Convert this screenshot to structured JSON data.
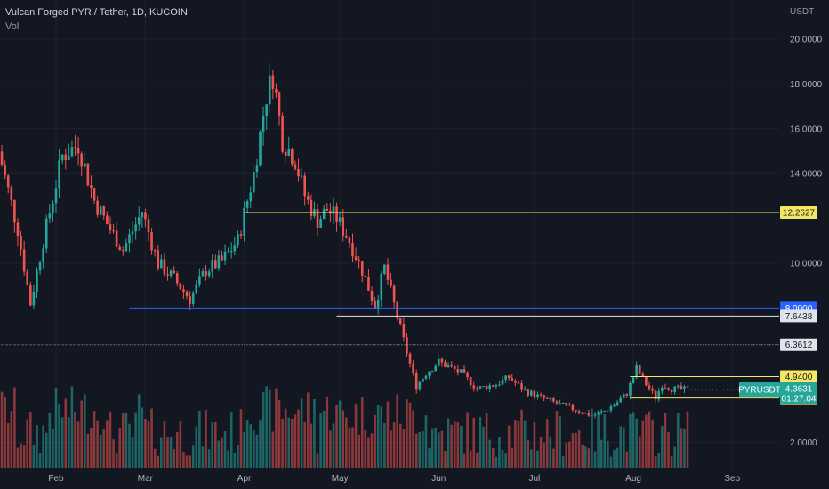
{
  "header": {
    "title": "Vulcan Forged PYR / Tether, 1D, KUCOIN",
    "vol_label": "Vol",
    "currency": "USDT"
  },
  "colors": {
    "background": "#131722",
    "up": "#26a69a",
    "down": "#ef5350",
    "level_yellow": "#f5e663",
    "level_blue": "#2962ff",
    "level_white": "#e0e3eb",
    "price_tag": "#26a69a"
  },
  "chart_data": {
    "type": "candlestick",
    "symbol": "PYRUSDT",
    "timeframe": "1D",
    "ylim": [
      1.0,
      21.0
    ],
    "y_ticks": [
      "20.0000",
      "18.0000",
      "16.0000",
      "14.0000",
      "10.0000",
      "2.0000"
    ],
    "x_ticks": [
      "Feb",
      "Mar",
      "Apr",
      "May",
      "Jun",
      "Jul",
      "Aug",
      "Sep"
    ],
    "close_path": [
      {
        "day": 0,
        "close": 15.0
      },
      {
        "day": 6,
        "close": 11.5
      },
      {
        "day": 10,
        "close": 8.2
      },
      {
        "day": 14,
        "close": 11.0
      },
      {
        "day": 20,
        "close": 14.8
      },
      {
        "day": 25,
        "close": 15.3
      },
      {
        "day": 30,
        "close": 12.8
      },
      {
        "day": 35,
        "close": 11.5
      },
      {
        "day": 39,
        "close": 10.6
      },
      {
        "day": 45,
        "close": 12.3
      },
      {
        "day": 50,
        "close": 10.0
      },
      {
        "day": 55,
        "close": 9.3
      },
      {
        "day": 60,
        "close": 8.4
      },
      {
        "day": 65,
        "close": 9.7
      },
      {
        "day": 70,
        "close": 10.1
      },
      {
        "day": 75,
        "close": 11.0
      },
      {
        "day": 80,
        "close": 14.0
      },
      {
        "day": 84,
        "close": 17.5
      },
      {
        "day": 86,
        "close": 18.4
      },
      {
        "day": 89,
        "close": 15.5
      },
      {
        "day": 93,
        "close": 14.6
      },
      {
        "day": 96,
        "close": 13.0
      },
      {
        "day": 100,
        "close": 11.9
      },
      {
        "day": 103,
        "close": 12.4
      },
      {
        "day": 106,
        "close": 12.0
      },
      {
        "day": 110,
        "close": 11.0
      },
      {
        "day": 114,
        "close": 9.7
      },
      {
        "day": 118,
        "close": 8.1
      },
      {
        "day": 121,
        "close": 9.8
      },
      {
        "day": 125,
        "close": 7.6
      },
      {
        "day": 129,
        "close": 5.5
      },
      {
        "day": 131,
        "close": 4.5
      },
      {
        "day": 134,
        "close": 5.1
      },
      {
        "day": 138,
        "close": 5.6
      },
      {
        "day": 145,
        "close": 5.1
      },
      {
        "day": 150,
        "close": 4.4
      },
      {
        "day": 156,
        "close": 4.6
      },
      {
        "day": 160,
        "close": 4.9
      },
      {
        "day": 165,
        "close": 4.3
      },
      {
        "day": 172,
        "close": 3.9
      },
      {
        "day": 180,
        "close": 3.5
      },
      {
        "day": 186,
        "close": 3.2
      },
      {
        "day": 190,
        "close": 3.4
      },
      {
        "day": 194,
        "close": 3.8
      },
      {
        "day": 197,
        "close": 4.2
      },
      {
        "day": 200,
        "close": 5.3
      },
      {
        "day": 203,
        "close": 4.6
      },
      {
        "day": 206,
        "close": 4.0
      },
      {
        "day": 208,
        "close": 4.6
      },
      {
        "day": 211,
        "close": 4.4
      },
      {
        "day": 215,
        "close": 4.35
      },
      {
        "day": 216,
        "close": 4.3631
      }
    ],
    "day_ticks": {
      "Feb": 18,
      "Mar": 46,
      "Apr": 77,
      "May": 107,
      "Jun": 138,
      "Jul": 168,
      "Aug": 199,
      "Sep": 230
    },
    "level_lines": [
      {
        "value": 12.2627,
        "label": "12.2627",
        "color": "#f5e663",
        "style": "solid",
        "start_day": 77
      },
      {
        "value": 8.0,
        "label": "8.0000",
        "color": "#2962ff",
        "style": "solid",
        "start_day": 41
      },
      {
        "value": 7.6438,
        "label": "7.6438",
        "color": "#e0e3eb",
        "style": "solid",
        "start_day": 106
      },
      {
        "value": 6.3612,
        "label": "6.3612",
        "color": "#b2b5be",
        "style": "dotted",
        "start_day": 0
      },
      {
        "value": 4.94,
        "label": "4.9400",
        "color": "#f5e663",
        "style": "solid",
        "start_day": 198
      },
      {
        "value": 3.9837,
        "label": "3.9837",
        "color": "#f5e663",
        "style": "solid",
        "start_day": 198
      }
    ],
    "last_price": {
      "symbol": "PYRUSDT",
      "value": "4.3631",
      "countdown": "01:27:04"
    }
  }
}
